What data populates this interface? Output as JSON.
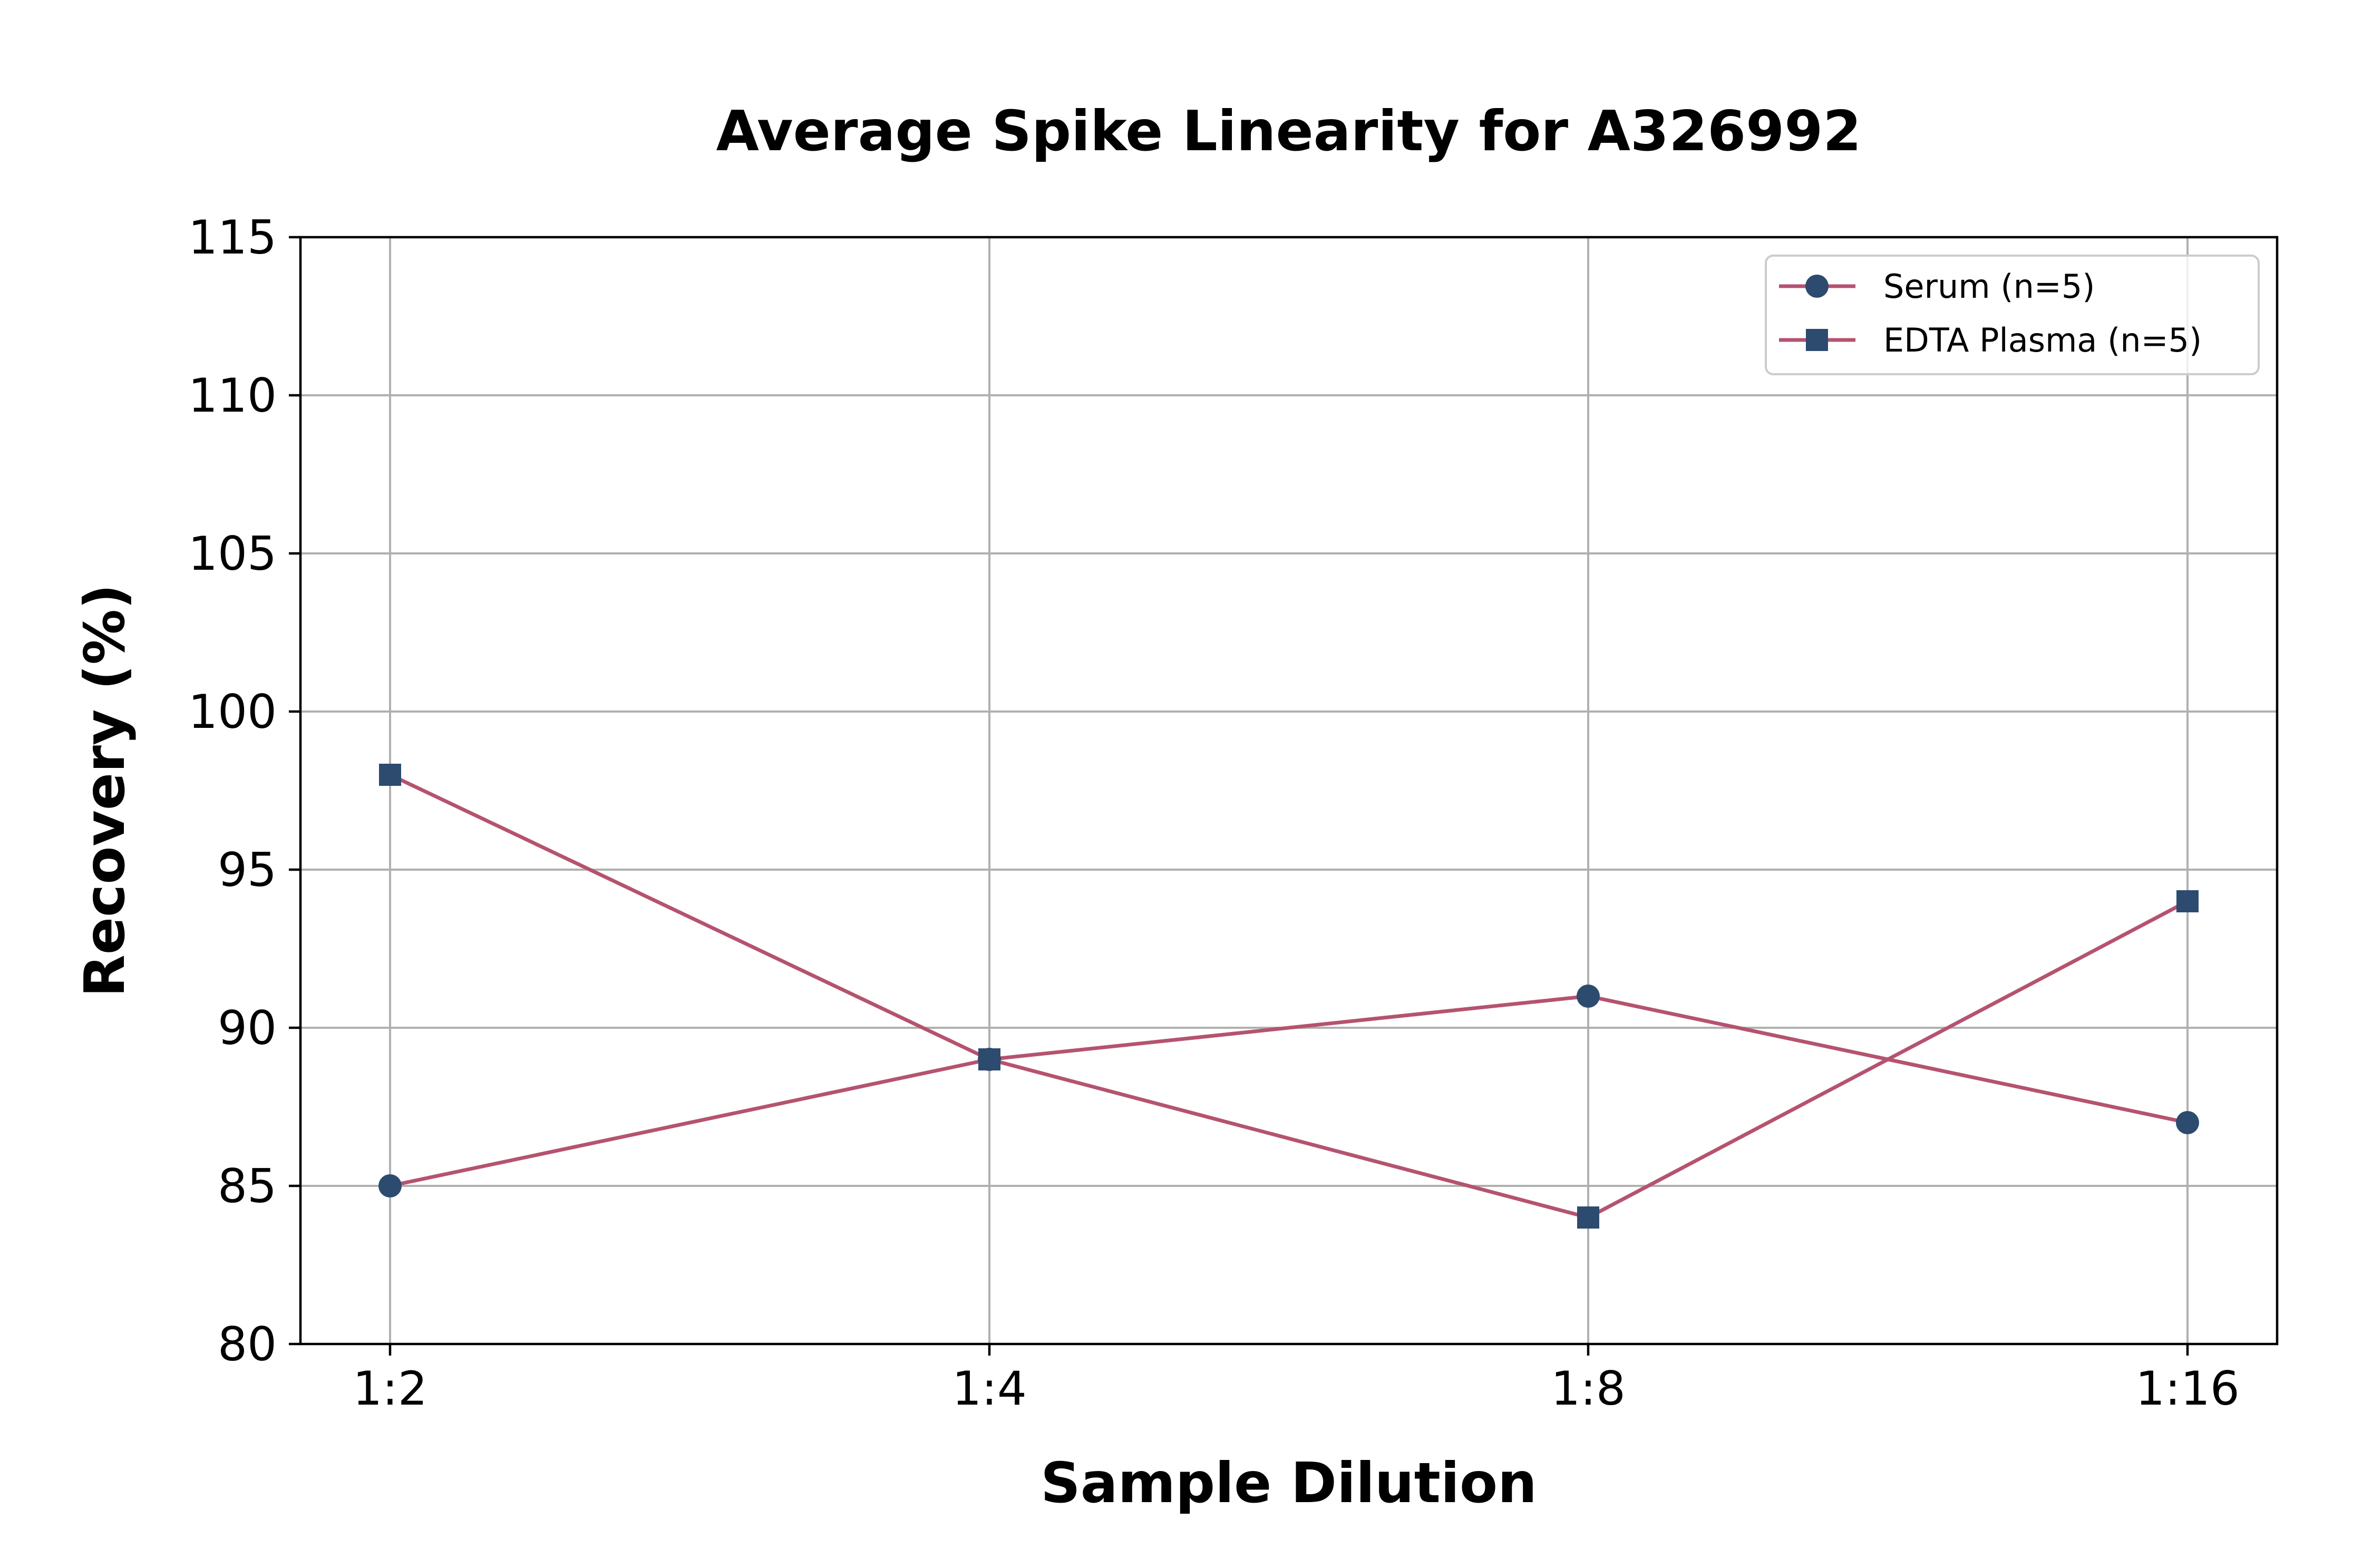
{
  "chart_data": {
    "type": "line",
    "title": "Average Spike Linearity for A326992",
    "xlabel": "Sample Dilution",
    "ylabel": "Recovery (%)",
    "categories": [
      "1:2",
      "1:4",
      "1:8",
      "1:16"
    ],
    "ylim": [
      80,
      115
    ],
    "yticks": [
      80,
      85,
      90,
      95,
      100,
      105,
      110,
      115
    ],
    "grid": true,
    "legend_position": "top-right",
    "series": [
      {
        "name": "Serum (n=5)",
        "marker": "circle",
        "values": [
          85,
          89,
          91,
          87
        ],
        "line_color": "#b5536f",
        "marker_color": "#2c4b6e"
      },
      {
        "name": "EDTA Plasma (n=5)",
        "marker": "square",
        "values": [
          98,
          89,
          84,
          94
        ],
        "line_color": "#b5536f",
        "marker_color": "#2c4b6e"
      }
    ]
  }
}
